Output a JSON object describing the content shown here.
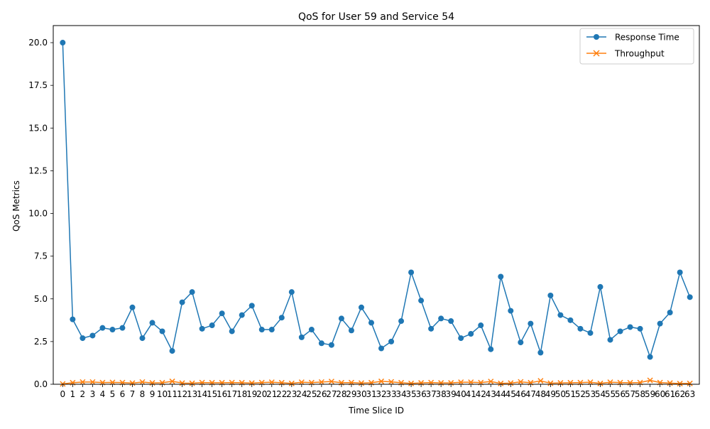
{
  "chart_data": {
    "type": "line",
    "title": "QoS for User 59 and Service 54",
    "xlabel": "Time Slice ID",
    "ylabel": "QoS Metrics",
    "x": [
      0,
      1,
      2,
      3,
      4,
      5,
      6,
      7,
      8,
      9,
      10,
      11,
      12,
      13,
      14,
      15,
      16,
      17,
      18,
      19,
      20,
      21,
      22,
      23,
      24,
      25,
      26,
      27,
      28,
      29,
      30,
      31,
      32,
      33,
      34,
      35,
      36,
      37,
      38,
      39,
      40,
      41,
      42,
      43,
      44,
      45,
      46,
      47,
      48,
      49,
      50,
      51,
      52,
      53,
      54,
      55,
      56,
      57,
      58,
      59,
      60,
      61,
      62,
      63
    ],
    "ylim": [
      0,
      21
    ],
    "yticks": [
      0.0,
      2.5,
      5.0,
      7.5,
      10.0,
      12.5,
      15.0,
      17.5,
      20.0
    ],
    "ytick_labels": [
      "0.0",
      "2.5",
      "5.0",
      "7.5",
      "10.0",
      "12.5",
      "15.0",
      "17.5",
      "20.0"
    ],
    "legend_position": "top-right",
    "grid": false,
    "series": [
      {
        "name": "Response Time",
        "color": "#1f77b4",
        "marker": "circle",
        "values": [
          20.0,
          3.8,
          2.7,
          2.85,
          3.3,
          3.2,
          3.3,
          4.5,
          2.7,
          3.6,
          3.1,
          1.95,
          4.8,
          5.4,
          3.25,
          3.45,
          4.15,
          3.1,
          4.05,
          4.6,
          3.2,
          3.2,
          3.9,
          5.4,
          2.75,
          3.2,
          2.4,
          2.3,
          3.85,
          3.15,
          4.5,
          3.6,
          2.1,
          2.5,
          3.7,
          6.55,
          4.9,
          3.25,
          3.85,
          3.7,
          2.7,
          2.95,
          3.45,
          2.05,
          6.3,
          4.3,
          2.45,
          3.55,
          1.85,
          5.2,
          4.05,
          3.75,
          3.25,
          3.0,
          5.7,
          2.6,
          3.1,
          3.35,
          3.25,
          1.6,
          3.55,
          4.2,
          6.55,
          5.1
        ]
      },
      {
        "name": "Throughput",
        "color": "#ff7f0e",
        "marker": "x",
        "values": [
          0.02,
          0.09,
          0.13,
          0.13,
          0.1,
          0.11,
          0.1,
          0.07,
          0.13,
          0.08,
          0.09,
          0.17,
          0.07,
          0.06,
          0.1,
          0.09,
          0.09,
          0.1,
          0.09,
          0.07,
          0.1,
          0.12,
          0.09,
          0.05,
          0.12,
          0.1,
          0.13,
          0.16,
          0.09,
          0.1,
          0.07,
          0.09,
          0.17,
          0.14,
          0.09,
          0.05,
          0.08,
          0.1,
          0.08,
          0.08,
          0.12,
          0.12,
          0.1,
          0.16,
          0.05,
          0.07,
          0.14,
          0.09,
          0.2,
          0.06,
          0.08,
          0.09,
          0.1,
          0.12,
          0.05,
          0.12,
          0.1,
          0.09,
          0.1,
          0.23,
          0.1,
          0.07,
          0.04,
          0.05
        ]
      }
    ]
  }
}
